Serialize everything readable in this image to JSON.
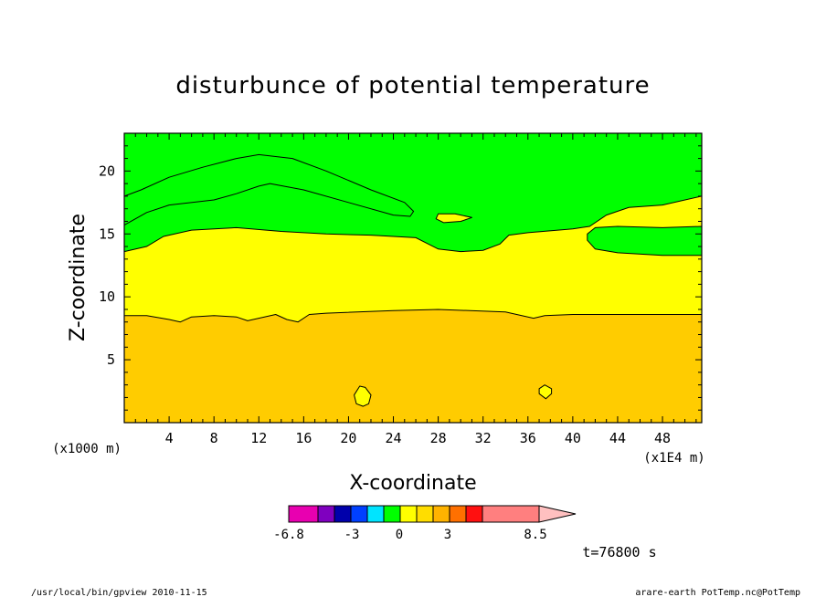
{
  "chart_data": {
    "type": "contour",
    "title": "disturbunce of potential temperature",
    "xlabel": "X-coordinate",
    "ylabel": "Z-coordinate",
    "x_unit": "(x1E4 m)",
    "y_unit": "(x1000 m)",
    "xlim": [
      0,
      51.5
    ],
    "ylim": [
      0,
      23
    ],
    "x_ticks": [
      4,
      8,
      12,
      16,
      20,
      24,
      28,
      32,
      36,
      40,
      44,
      48
    ],
    "y_ticks": [
      5,
      10,
      15,
      20
    ],
    "time_label": "t=76800 s",
    "colors": {
      "green": "#00ff00",
      "yellow": "#ffff00",
      "orange": "#ffcc00"
    },
    "colorbar": {
      "colors": [
        "#e800b0",
        "#7f00bf",
        "#0000ab",
        "#0040ff",
        "#00e4ff",
        "#00ff00",
        "#ffff00",
        "#ffdd00",
        "#ffb300",
        "#ff7000",
        "#ff1010",
        "#ff7f7f",
        "#ffc0c0"
      ],
      "tick_labels": [
        "-6.8",
        "-3",
        "0",
        "3",
        "8.5"
      ]
    },
    "regions": [
      {
        "name": "lower",
        "color": "orange",
        "points": [
          [
            0,
            0
          ],
          [
            51.5,
            0
          ],
          [
            51.5,
            8.6
          ],
          [
            40,
            8.6
          ],
          [
            37.5,
            8.5
          ],
          [
            36.5,
            8.3
          ],
          [
            34,
            8.8
          ],
          [
            28,
            9.0
          ],
          [
            24,
            8.9
          ],
          [
            18,
            8.7
          ],
          [
            16.5,
            8.6
          ],
          [
            15.5,
            8.0
          ],
          [
            14.5,
            8.2
          ],
          [
            13.5,
            8.6
          ],
          [
            12.5,
            8.4
          ],
          [
            11,
            8.1
          ],
          [
            10,
            8.4
          ],
          [
            8,
            8.5
          ],
          [
            6,
            8.4
          ],
          [
            5,
            8.0
          ],
          [
            4,
            8.2
          ],
          [
            2,
            8.5
          ],
          [
            0,
            8.5
          ]
        ]
      },
      {
        "name": "blob-21",
        "color": "yellow",
        "points": [
          [
            21.0,
            2.9
          ],
          [
            21.5,
            2.8
          ],
          [
            22.0,
            2.2
          ],
          [
            21.8,
            1.5
          ],
          [
            21.3,
            1.3
          ],
          [
            20.7,
            1.5
          ],
          [
            20.5,
            2.2
          ]
        ]
      },
      {
        "name": "blob-37",
        "color": "yellow",
        "points": [
          [
            37.5,
            3.0
          ],
          [
            38.1,
            2.7
          ],
          [
            38.1,
            2.3
          ],
          [
            37.6,
            1.9
          ],
          [
            37.0,
            2.3
          ],
          [
            37.0,
            2.7
          ]
        ]
      },
      {
        "name": "upper-green-right",
        "color": "green",
        "points": [
          [
            41.3,
            15.0
          ],
          [
            42,
            15.5
          ],
          [
            44,
            15.6
          ],
          [
            48,
            15.5
          ],
          [
            51.5,
            15.6
          ],
          [
            51.5,
            13.3
          ],
          [
            48,
            13.3
          ],
          [
            44,
            13.5
          ],
          [
            42,
            13.8
          ],
          [
            41.3,
            14.5
          ]
        ]
      },
      {
        "name": "upper-green-left",
        "color": "green",
        "points": [
          [
            0,
            15.7
          ],
          [
            2,
            16.7
          ],
          [
            4,
            17.3
          ],
          [
            8,
            17.7
          ],
          [
            10,
            18.2
          ],
          [
            12,
            18.8
          ],
          [
            13,
            19.0
          ],
          [
            16,
            18.5
          ],
          [
            20,
            17.5
          ],
          [
            24,
            16.5
          ],
          [
            25.5,
            16.4
          ],
          [
            25.8,
            16.8
          ],
          [
            25,
            17.5
          ],
          [
            22,
            18.5
          ],
          [
            18,
            20
          ],
          [
            15,
            21
          ],
          [
            12,
            21.3
          ],
          [
            10,
            21.0
          ],
          [
            7,
            20.3
          ],
          [
            4,
            19.5
          ],
          [
            1.5,
            18.5
          ],
          [
            0,
            18.0
          ]
        ]
      },
      {
        "name": "blob-29",
        "color": "yellow",
        "points": [
          [
            28,
            16.6
          ],
          [
            29.5,
            16.6
          ],
          [
            31,
            16.3
          ],
          [
            30,
            16.0
          ],
          [
            28.5,
            15.9
          ],
          [
            27.8,
            16.2
          ]
        ]
      }
    ],
    "middle_band": {
      "color": "yellow",
      "bottom_ref": "lower",
      "top": [
        [
          0,
          13.6
        ],
        [
          2,
          14.0
        ],
        [
          3.5,
          14.8
        ],
        [
          6,
          15.3
        ],
        [
          10,
          15.5
        ],
        [
          14,
          15.2
        ],
        [
          18,
          15.0
        ],
        [
          22,
          14.9
        ],
        [
          26,
          14.7
        ],
        [
          28,
          13.8
        ],
        [
          30,
          13.6
        ],
        [
          32,
          13.7
        ],
        [
          33.5,
          14.2
        ],
        [
          34.3,
          14.9
        ],
        [
          36,
          15.1
        ],
        [
          40,
          15.4
        ],
        [
          41.5,
          15.6
        ],
        [
          43,
          16.5
        ],
        [
          45,
          17.1
        ],
        [
          48,
          17.3
        ],
        [
          51.5,
          18.0
        ]
      ]
    },
    "top_band": {
      "color": "green"
    }
  },
  "footer": {
    "left": "/usr/local/bin/gpview  2010-11-15",
    "right": "arare-earth_PotTemp.nc@PotTemp"
  }
}
